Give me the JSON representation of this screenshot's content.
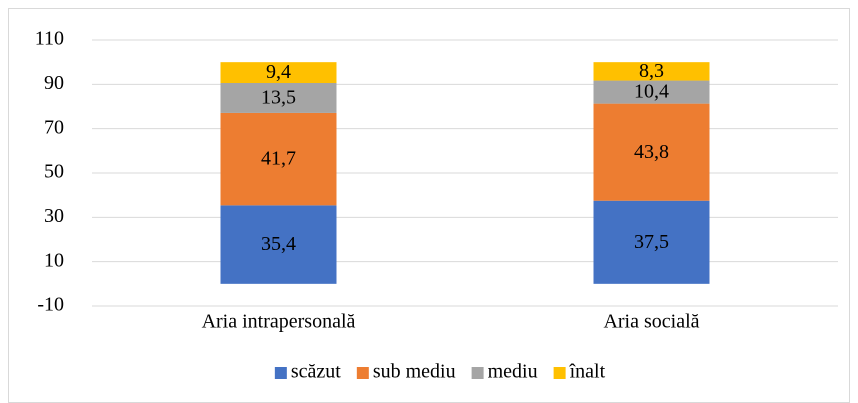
{
  "chart_data": {
    "type": "stacked_bar",
    "categories": [
      "Aria intrapersonală",
      "Aria socială"
    ],
    "series": [
      {
        "name": "scăzut",
        "color": "#4472c4",
        "values": [
          35.4,
          37.5
        ],
        "value_labels": [
          "35,4",
          "37,5"
        ]
      },
      {
        "name": "sub mediu",
        "color": "#ed7d31",
        "values": [
          41.7,
          43.8
        ],
        "value_labels": [
          "41,7",
          "43,8"
        ]
      },
      {
        "name": "mediu",
        "color": "#a5a5a5",
        "values": [
          13.5,
          10.4
        ],
        "value_labels": [
          "13,5",
          "10,4"
        ]
      },
      {
        "name": "înalt",
        "color": "#ffc000",
        "values": [
          9.4,
          8.3
        ],
        "value_labels": [
          "9,4",
          "8,3"
        ]
      }
    ],
    "ylim": [
      -10,
      110
    ],
    "yticks": [
      -10,
      10,
      30,
      50,
      70,
      90,
      110
    ],
    "grid": true,
    "legend": "bottom"
  }
}
